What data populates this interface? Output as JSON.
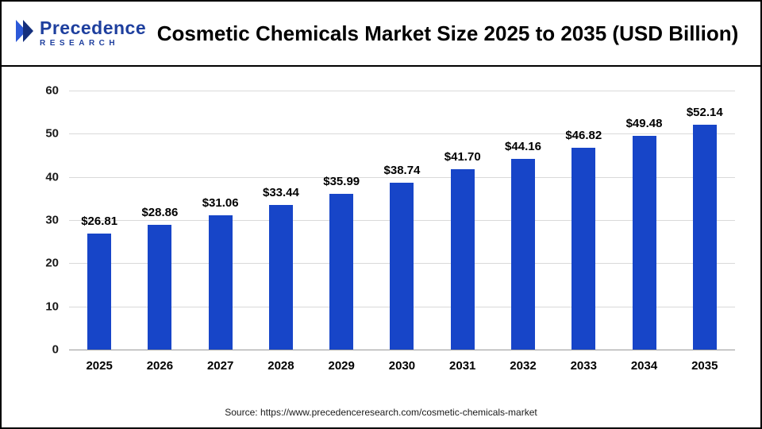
{
  "header": {
    "logo_text": "Precedence",
    "logo_subtext": "RESEARCH",
    "title": "Cosmetic Chemicals Market Size 2025 to 2035 (USD Billion)"
  },
  "chart_data": {
    "type": "bar",
    "title": "Cosmetic Chemicals Market Size 2025 to 2035 (USD Billion)",
    "categories": [
      "2025",
      "2026",
      "2027",
      "2028",
      "2029",
      "2030",
      "2031",
      "2032",
      "2033",
      "2034",
      "2035"
    ],
    "values": [
      26.81,
      28.86,
      31.06,
      33.44,
      35.99,
      38.74,
      41.7,
      44.16,
      46.82,
      49.48,
      52.14
    ],
    "labels": [
      "$26.81",
      "$28.86",
      "$31.06",
      "$33.44",
      "$35.99",
      "$38.74",
      "$41.70",
      "$44.16",
      "$46.82",
      "$49.48",
      "$52.14"
    ],
    "xlabel": "",
    "ylabel": "",
    "ylim": [
      0,
      60
    ],
    "yticks": [
      0,
      10,
      20,
      30,
      40,
      50,
      60
    ],
    "grid": true,
    "legend": false,
    "bar_color": "#1745c8"
  },
  "colors": {
    "bar": "#1745c8",
    "logo_blue": "#1e3f9e",
    "logo_chevron_light": "#2c59d8",
    "logo_chevron_dark": "#142f7d"
  },
  "footer": {
    "source": "Source: https://www.precedenceresearch.com/cosmetic-chemicals-market"
  }
}
